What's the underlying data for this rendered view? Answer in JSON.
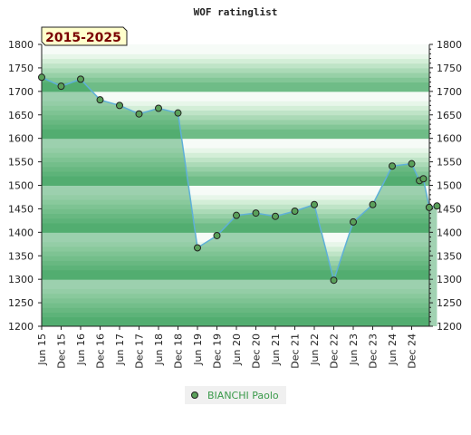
{
  "chart_data": {
    "type": "area",
    "title": "WOF ratinglist",
    "period_badge": "2015-2025",
    "xlabel": "",
    "ylabel": "",
    "ylim": [
      1200,
      1800
    ],
    "y_ticks": [
      1200,
      1250,
      1300,
      1350,
      1400,
      1450,
      1500,
      1550,
      1600,
      1650,
      1700,
      1750,
      1800
    ],
    "x_ticks": [
      "Jun 15",
      "Dec 15",
      "Jun 16",
      "Dec 16",
      "Jun 17",
      "Dec 17",
      "Jun 18",
      "Dec 18",
      "Jun 19",
      "Dec 19",
      "Jun 20",
      "Dec 20",
      "Jun 21",
      "Dec 21",
      "Jun 22",
      "Dec 22",
      "Jun 23",
      "Dec 23",
      "Jun 24",
      "Dec 24"
    ],
    "grid": true,
    "legend_position": "bottom",
    "series": [
      {
        "name": "BIANCHI Paolo",
        "color": "#5fb0d8",
        "marker_color": "#5aa05a",
        "x": [
          0,
          1,
          2,
          3,
          4,
          5,
          6,
          7,
          8,
          9,
          10,
          11,
          12,
          13,
          14,
          15,
          16,
          17,
          18,
          19,
          19.4,
          19.6,
          19.9,
          20.3
        ],
        "values": [
          1730,
          1711,
          1726,
          1682,
          1670,
          1652,
          1664,
          1654,
          1367,
          1393,
          1436,
          1441,
          1434,
          1445,
          1459,
          1298,
          1422,
          1459,
          1541,
          1546,
          1510,
          1514,
          1453,
          1456
        ]
      }
    ]
  }
}
